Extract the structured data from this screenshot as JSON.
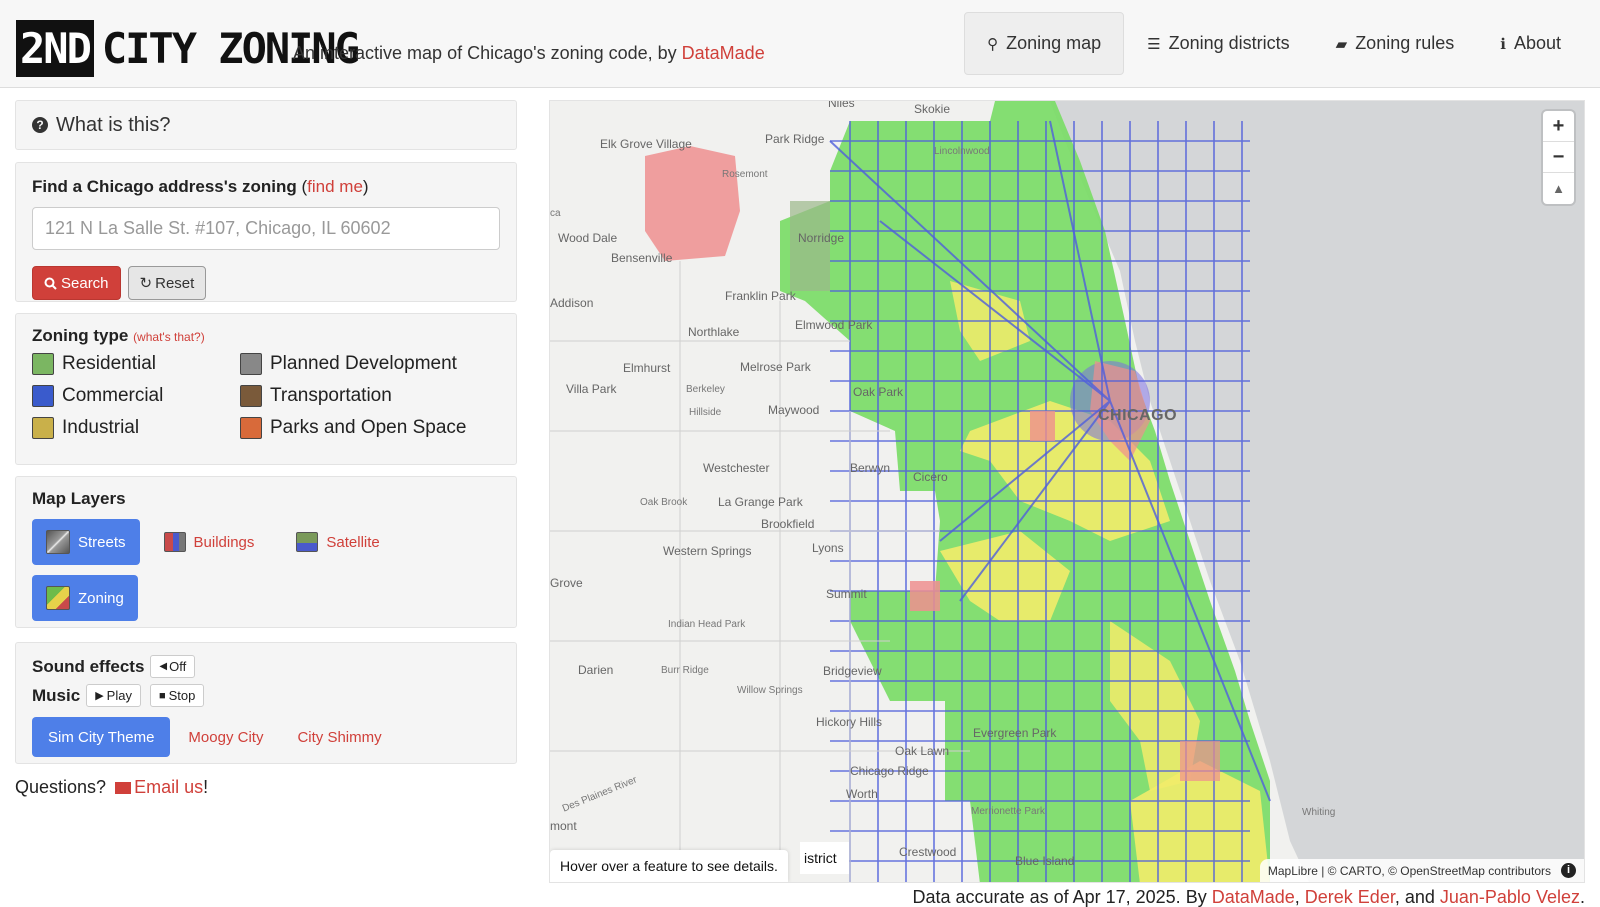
{
  "header": {
    "logo_block": "2ND",
    "logo_rest": "CITY ZONING",
    "tagline_prefix": "An interactive map of Chicago's zoning code, by ",
    "tagline_link": "DataMade",
    "nav": [
      {
        "label": "Zoning map",
        "icon": "map-marker-icon",
        "glyph": "⚲"
      },
      {
        "label": "Zoning districts",
        "icon": "list-icon",
        "glyph": "☰"
      },
      {
        "label": "Zoning rules",
        "icon": "book-icon",
        "glyph": "▰"
      },
      {
        "label": "About",
        "icon": "info-circle-icon",
        "glyph": "ℹ"
      }
    ]
  },
  "sidebar": {
    "whatis": "What is this?",
    "find": {
      "title": "Find a Chicago address's zoning",
      "find_me": "find me",
      "placeholder": "121 N La Salle St. #107, Chicago, IL 60602",
      "search": "Search",
      "reset": "Reset"
    },
    "zoning_type": {
      "title": "Zoning type",
      "whats_that": "(what's that?)",
      "items": [
        {
          "label": "Residential",
          "color": "#7bb662"
        },
        {
          "label": "Planned Development",
          "color": "#888888"
        },
        {
          "label": "Commercial",
          "color": "#3a5bcc"
        },
        {
          "label": "Transportation",
          "color": "#7a5a3a"
        },
        {
          "label": "Industrial",
          "color": "#c9b04a"
        },
        {
          "label": "Parks and Open Space",
          "color": "#d86a3a"
        }
      ]
    },
    "layers": {
      "title": "Map Layers",
      "streets": "Streets",
      "buildings": "Buildings",
      "satellite": "Satellite",
      "zoning": "Zoning"
    },
    "sound": {
      "effects_label": "Sound effects",
      "off": "Off",
      "music_label": "Music",
      "play": "Play",
      "stop": "Stop",
      "tracks": [
        "Sim City Theme",
        "Moogy City",
        "City Shimmy"
      ]
    },
    "questions": "Questions?",
    "email": "Email us",
    "exclaim": "!"
  },
  "map": {
    "labels": {
      "niles": "Niles",
      "skokie": "Skokie",
      "elk_grove": "Elk Grove Village",
      "park_ridge": "Park Ridge",
      "lincolnwood": "Lincolnwood",
      "rosemont": "Rosemont",
      "ca": "ca",
      "wood_dale": "Wood Dale",
      "norridge": "Norridge",
      "bensenville": "Bensenville",
      "addison": "Addison",
      "franklin_park": "Franklin Park",
      "northlake": "Northlake",
      "elmwood_park": "Elmwood Park",
      "elmhurst": "Elmhurst",
      "melrose_park": "Melrose Park",
      "villa_park": "Villa Park",
      "berkeley": "Berkeley",
      "oak_park": "Oak Park",
      "hillside": "Hillside",
      "maywood": "Maywood",
      "chicago": "CHICAGO",
      "westchester": "Westchester",
      "berwyn": "Berwyn",
      "cicero": "Cicero",
      "oak_brook": "Oak Brook",
      "la_grange_park": "La Grange Park",
      "brookfield": "Brookfield",
      "western_springs": "Western Springs",
      "lyons": "Lyons",
      "grove": "Grove",
      "summit": "Summit",
      "indian_head_park": "Indian Head Park",
      "darien": "Darien",
      "burr_ridge": "Burr Ridge",
      "bridgeview": "Bridgeview",
      "willow_springs": "Willow Springs",
      "hickory_hills": "Hickory Hills",
      "evergreen_park": "Evergreen Park",
      "oak_lawn": "Oak Lawn",
      "chicago_ridge": "Chicago Ridge",
      "des_plaines_river": "Des Plaines River",
      "worth": "Worth",
      "merrionette_park": "Merrionette Park",
      "whiting": "Whiting",
      "mont": "mont",
      "crestwood": "Crestwood",
      "blue_island": "Blue Island"
    },
    "zoom_in": "+",
    "zoom_out": "−",
    "compass": "▲",
    "attribution": "MapLibre | © CARTO, © OpenStreetMap contributors",
    "info": "i",
    "hover_text": "Hover over a feature to see details.",
    "district_tab": "istrict"
  },
  "footer": {
    "prefix": "Data accurate as of Apr 17, 2025. By ",
    "author1": "DataMade",
    "sep1": ", ",
    "author2": "Derek Eder",
    "sep2": ", and ",
    "author3": "Juan-Pablo Velez",
    "end": "."
  }
}
